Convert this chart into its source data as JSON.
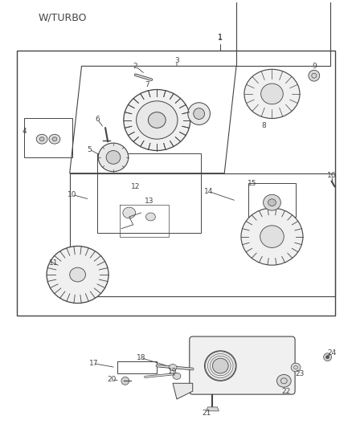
{
  "title": "W/TURBO",
  "bg_color": "#ffffff",
  "line_color": "#444444",
  "text_color": "#444444",
  "fig_width": 4.38,
  "fig_height": 5.33,
  "dpi": 100
}
